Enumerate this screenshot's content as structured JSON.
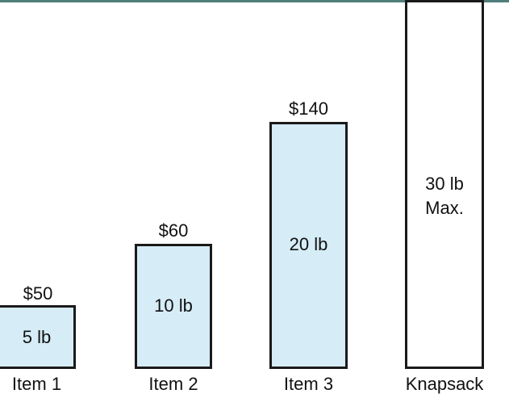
{
  "items": [
    {
      "name": "Item 1",
      "value": "$50",
      "weight": "5 lb"
    },
    {
      "name": "Item 2",
      "value": "$60",
      "weight": "10 lb"
    },
    {
      "name": "Item 3",
      "value": "$140",
      "weight": "20 lb"
    }
  ],
  "knapsack": {
    "name": "Knapsack",
    "capacity_line1": "30 lb",
    "capacity_line2": "Max."
  },
  "colors": {
    "item_fill": "#d6ecf7",
    "knapsack_fill": "#ffffff",
    "stroke": "#1a1a1a",
    "top_bar": "#4f7f7a"
  }
}
